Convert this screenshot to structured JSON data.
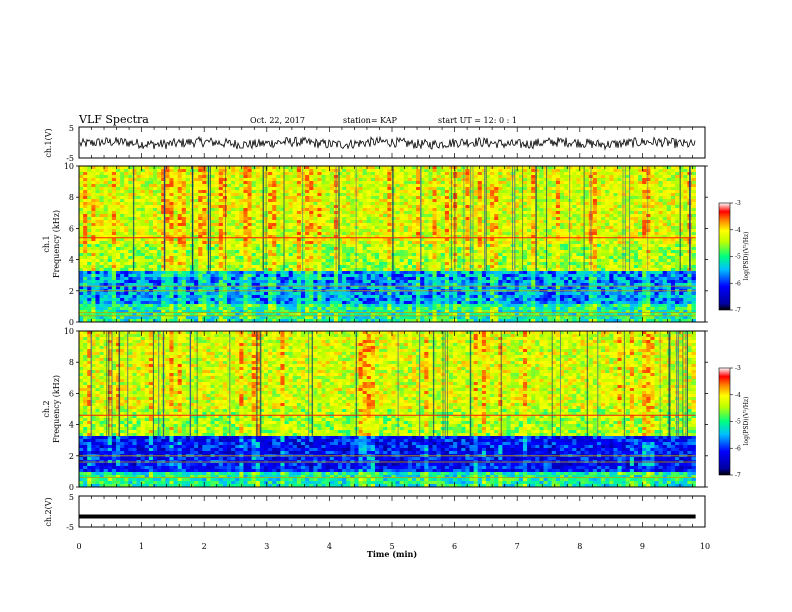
{
  "header": {
    "title": "VLF Spectra",
    "date": "Oct. 22, 2017",
    "station": "station= KAP",
    "start": "start  UT =   12: 0  : 1"
  },
  "chart_data": {
    "type": "heatmap",
    "time_axis": {
      "label": "Time  (min)",
      "range": [
        0,
        10
      ],
      "ticks": [
        0,
        1,
        2,
        3,
        4,
        5,
        6,
        7,
        8,
        9,
        10
      ],
      "data_end": 9.85
    },
    "waveform_ch1": {
      "ylabel": "ch.1(V)",
      "ylim": [
        -5,
        5
      ],
      "tick_labels": [
        "5",
        "-5"
      ],
      "mean": -0.2,
      "amplitude": 1.6
    },
    "waveform_ch2": {
      "ylabel": "ch.2(V)",
      "ylim": [
        -5,
        5
      ],
      "tick_labels": [
        "5",
        "-5"
      ],
      "level": -1.6
    },
    "spectrograms": [
      {
        "ylabel_top": "ch.1",
        "ylabel": "Frequency  (kHz)",
        "freq_range_khz": [
          0,
          10
        ],
        "freq_ticks": [
          "0",
          "2",
          "4",
          "6",
          "8",
          "10"
        ],
        "colorbar": {
          "label": "log(PSD)(V²/Hz)",
          "range": [
            -7,
            -3
          ],
          "ticks": [
            "-3",
            "-4",
            "-5",
            "-6",
            "-7"
          ]
        },
        "lines_khz": [
          5.4,
          2.3,
          2.0,
          0.6,
          0.4
        ],
        "low_band_khz": [
          1.2,
          3.3
        ]
      },
      {
        "ylabel_top": "ch.2",
        "ylabel": "Frequency  (kHz)",
        "freq_range_khz": [
          0,
          10
        ],
        "freq_ticks": [
          "0",
          "2",
          "4",
          "6",
          "8",
          "10"
        ],
        "colorbar": {
          "label": "log(PSD)(V²/Hz)",
          "range": [
            -7,
            -3
          ],
          "ticks": [
            "-3",
            "-4",
            "-5",
            "-6",
            "-7"
          ]
        },
        "lines_khz": [
          4.6,
          2.0,
          1.6,
          0.6
        ],
        "low_band_khz": [
          1.0,
          3.2
        ]
      }
    ],
    "colorscale": [
      "#000080",
      "#0000ff",
      "#0080ff",
      "#00ffff",
      "#80ff80",
      "#ffff00",
      "#ff8000",
      "#ff0000",
      "#ffffff"
    ]
  }
}
